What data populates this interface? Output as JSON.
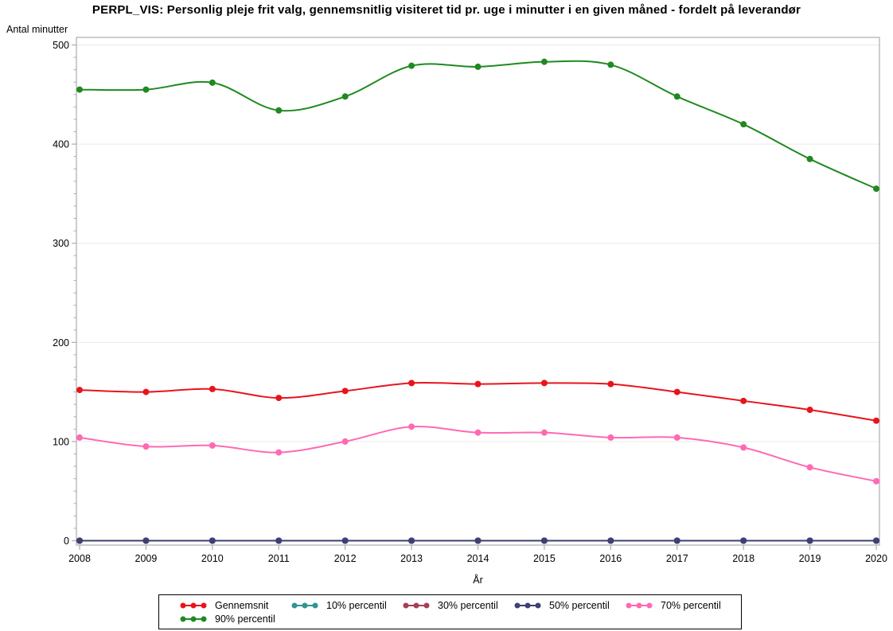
{
  "title": "PERPL_VIS: Personlig pleje frit valg, gennemsnitlig visiteret tid pr. uge i minutter i en given måned - fordelt på leverandør",
  "y_axis": {
    "label": "Antal minutter",
    "ticks": [
      0,
      100,
      200,
      300,
      400,
      500
    ],
    "minor_divisions": 8,
    "min": 0,
    "max": 500
  },
  "x_axis": {
    "label": "År",
    "ticks": [
      2008,
      2009,
      2010,
      2011,
      2012,
      2013,
      2014,
      2015,
      2016,
      2017,
      2018,
      2019,
      2020
    ]
  },
  "colors": {
    "axis_frame": "#A9ADB2",
    "gridline": "#E9E9E9",
    "background": "#FFFFFF",
    "text": "#000000"
  },
  "chart_data": {
    "type": "line",
    "title": "PERPL_VIS: Personlig pleje frit valg, gennemsnitlig visiteret tid pr. uge i minutter i en given måned - fordelt på leverandør",
    "xlabel": "År",
    "ylabel": "Antal minutter",
    "ylim": [
      0,
      500
    ],
    "grid": "horizontal-major",
    "legend_position": "bottom-box",
    "interpolation": "spline",
    "x": [
      2008,
      2009,
      2010,
      2011,
      2012,
      2013,
      2014,
      2015,
      2016,
      2017,
      2018,
      2019,
      2020
    ],
    "series": [
      {
        "name": "Gennemsnit",
        "color": "#E8141C",
        "values": [
          152,
          150,
          153,
          144,
          151,
          159,
          158,
          159,
          158,
          150,
          141,
          132,
          121
        ]
      },
      {
        "name": "10% percentil",
        "color": "#2E9494",
        "values": [
          0,
          0,
          0,
          0,
          0,
          0,
          0,
          0,
          0,
          0,
          0,
          0,
          0
        ]
      },
      {
        "name": "30% percentil",
        "color": "#A63F52",
        "values": [
          0,
          0,
          0,
          0,
          0,
          0,
          0,
          0,
          0,
          0,
          0,
          0,
          0
        ]
      },
      {
        "name": "50% percentil",
        "color": "#3F3F73",
        "values": [
          0,
          0,
          0,
          0,
          0,
          0,
          0,
          0,
          0,
          0,
          0,
          0,
          0
        ]
      },
      {
        "name": "70% percentil",
        "color": "#FF69B4",
        "values": [
          104,
          95,
          96,
          89,
          100,
          115,
          109,
          109,
          104,
          104,
          94,
          74,
          60
        ]
      },
      {
        "name": "90% percentil",
        "color": "#1F8A1F",
        "values": [
          455,
          455,
          462,
          434,
          448,
          479,
          478,
          483,
          480,
          448,
          420,
          385,
          355
        ]
      }
    ]
  }
}
